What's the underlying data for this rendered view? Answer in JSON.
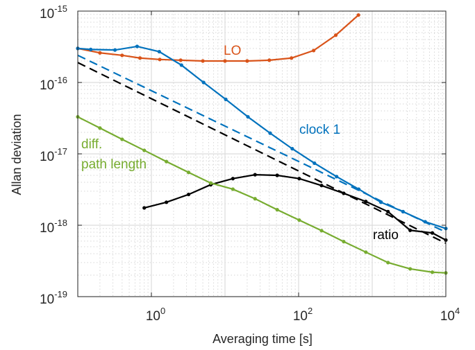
{
  "chart_data": {
    "type": "line",
    "xlabel": "Averaging time [s]",
    "ylabel": "Allan deviation",
    "xscale": "log",
    "yscale": "log",
    "xlim": [
      0.1,
      10000
    ],
    "ylim": [
      1e-19,
      1e-15
    ],
    "grid": "major and minor",
    "x_ticks": [
      {
        "base": "10",
        "exp": "0",
        "value": 1
      },
      {
        "base": "10",
        "exp": "2",
        "value": 100
      },
      {
        "base": "10",
        "exp": "4",
        "value": 10000
      }
    ],
    "y_ticks": [
      {
        "base": "10",
        "exp": "-19",
        "value": 1e-19
      },
      {
        "base": "10",
        "exp": "-18",
        "value": 1e-18
      },
      {
        "base": "10",
        "exp": "-17",
        "value": 1e-17
      },
      {
        "base": "10",
        "exp": "-16",
        "value": 1e-16
      },
      {
        "base": "10",
        "exp": "-15",
        "value": 1e-15
      }
    ],
    "series": [
      {
        "name": "LO",
        "color": "#d95319",
        "style": "solid",
        "markers": true,
        "x": [
          0.1,
          0.2,
          0.4,
          0.7,
          1.3,
          2.5,
          5,
          10,
          20,
          40,
          80,
          160,
          320,
          650
        ],
        "y": [
          3e-16,
          2.6e-16,
          2.4e-16,
          2.2e-16,
          2.1e-16,
          2.05e-16,
          2e-16,
          2e-16,
          2e-16,
          2.05e-16,
          2.2e-16,
          2.8e-16,
          4.6e-16,
          8.8e-16
        ]
      },
      {
        "name": "clock 1",
        "color": "#0072bd",
        "style": "solid",
        "markers": true,
        "x": [
          0.1,
          0.15,
          0.32,
          0.64,
          1.28,
          2.56,
          5.12,
          10.24,
          20.5,
          41,
          82,
          164,
          328,
          655,
          1311,
          2621,
          5243,
          10000
        ],
        "y": [
          3e-16,
          2.9e-16,
          2.85e-16,
          3.2e-16,
          2.7e-16,
          1.75e-16,
          1e-16,
          5.8e-17,
          3.3e-17,
          1.95e-17,
          1.18e-17,
          7.4e-18,
          4.8e-18,
          3.2e-18,
          2.1e-18,
          1.55e-18,
          1.12e-18,
          9e-19
        ]
      },
      {
        "name": "clock 1 (dashed)",
        "color": "#0072bd",
        "style": "dashed",
        "markers": false,
        "x": [
          0.1,
          10000
        ],
        "y": [
          2.4e-16,
          8e-19
        ]
      },
      {
        "name": "ratio (dashed)",
        "color": "#000000",
        "style": "dashed",
        "markers": false,
        "x": [
          0.1,
          10000
        ],
        "y": [
          1.9e-16,
          5.6e-19
        ]
      },
      {
        "name": "ratio",
        "color": "#000000",
        "style": "solid",
        "markers": true,
        "x": [
          0.8,
          1.6,
          3.2,
          6.4,
          12.8,
          25.6,
          51.2,
          102,
          205,
          410,
          819,
          1638,
          3277,
          6554,
          10000
        ],
        "y": [
          1.75e-18,
          2.1e-18,
          2.7e-18,
          3.7e-18,
          4.5e-18,
          5.1e-18,
          5e-18,
          4.5e-18,
          3.6e-18,
          2.8e-18,
          2.15e-18,
          1.55e-18,
          8.5e-19,
          7.8e-19,
          6.2e-19
        ]
      },
      {
        "name": "diff. path length",
        "color": "#77ac30",
        "style": "solid",
        "markers": true,
        "x": [
          0.1,
          0.2,
          0.4,
          0.8,
          1.6,
          3.2,
          6.4,
          12.8,
          25.6,
          51.2,
          102,
          205,
          410,
          819,
          1638,
          3277,
          6554,
          10000
        ],
        "y": [
          3.3e-17,
          2.3e-17,
          1.6e-17,
          1.12e-17,
          7.8e-18,
          5.5e-18,
          3.9e-18,
          3.2e-18,
          2.35e-18,
          1.65e-18,
          1.18e-18,
          8.4e-19,
          5.9e-19,
          4.2e-19,
          3e-19,
          2.45e-19,
          2.2e-19,
          2.15e-19
        ]
      }
    ],
    "labels": [
      {
        "key": "lo",
        "text": "LO",
        "color": "#d95319"
      },
      {
        "key": "clock",
        "text": "clock 1",
        "color": "#0072bd"
      },
      {
        "key": "diff1",
        "text": "diff.",
        "color": "#77ac30"
      },
      {
        "key": "diff2",
        "text": "path length",
        "color": "#77ac30"
      },
      {
        "key": "ratio",
        "text": "ratio",
        "color": "#000000"
      }
    ]
  }
}
